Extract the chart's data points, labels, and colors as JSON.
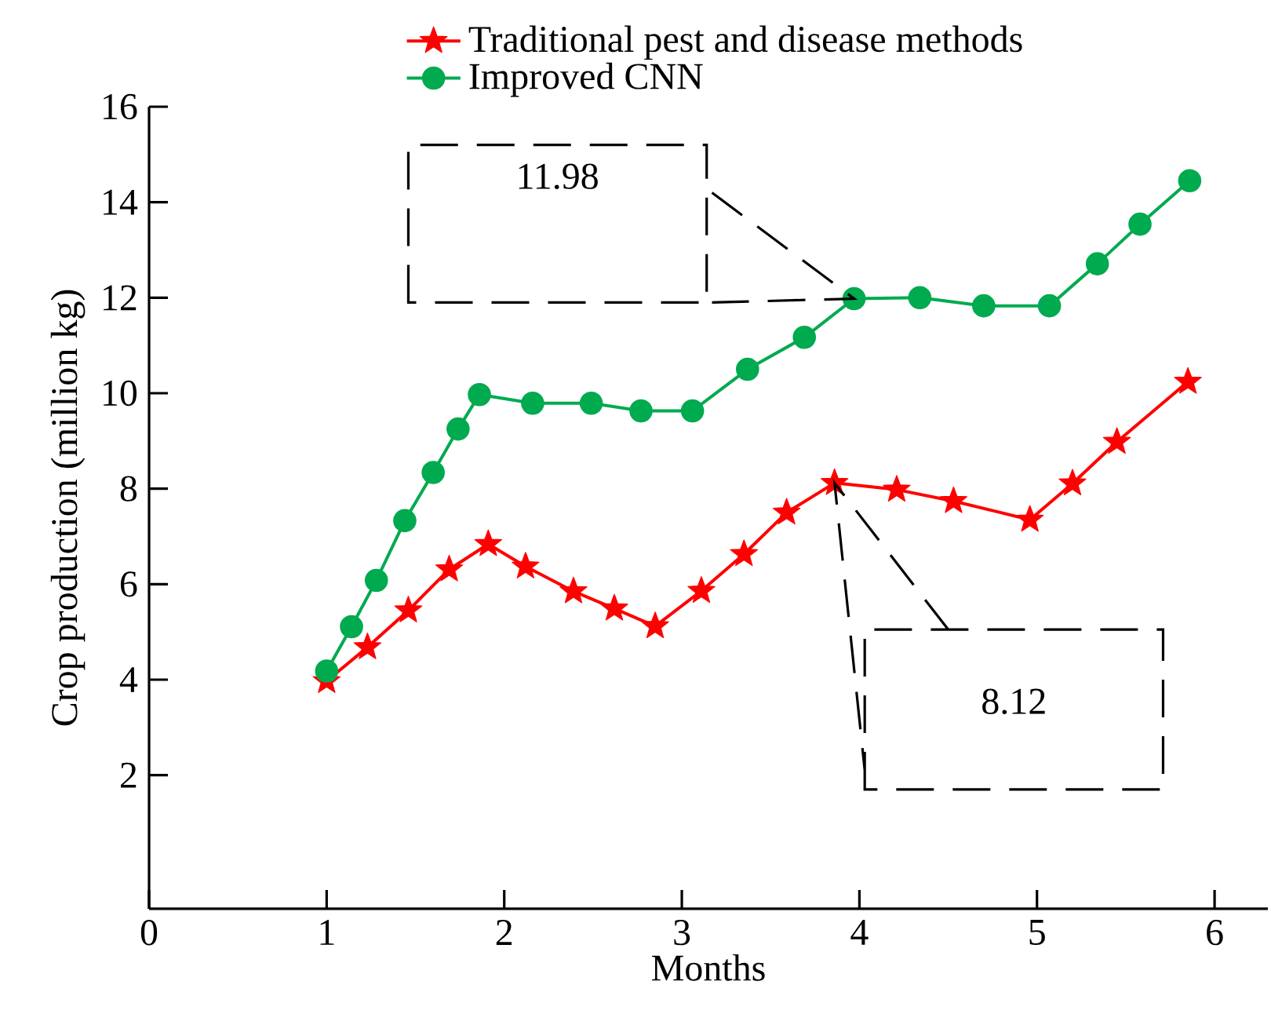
{
  "chart_data": {
    "type": "line",
    "xlabel": "Months",
    "ylabel": "Crop production (million kg)",
    "xlim": [
      0,
      6.3
    ],
    "ylim": [
      -0.8,
      16
    ],
    "xticks": [
      0,
      1,
      2,
      3,
      4,
      5,
      6
    ],
    "yticks": [
      2,
      4,
      6,
      8,
      10,
      12,
      14,
      16
    ],
    "legend": "top",
    "grid": false,
    "line_style": "solid",
    "series": [
      {
        "name": "Traditional pest and disease methods",
        "color": "#ff0000",
        "marker": "star",
        "x": [
          1,
          1.23,
          1.46,
          1.69,
          1.91,
          2.12,
          2.39,
          2.62,
          2.85,
          3.11,
          3.35,
          3.59,
          3.86,
          4.21,
          4.53,
          4.96,
          5.2,
          5.45,
          5.85
        ],
        "values": [
          3.97,
          4.68,
          5.45,
          6.31,
          6.84,
          6.37,
          5.85,
          5.49,
          5.12,
          5.86,
          6.63,
          7.5,
          8.12,
          7.98,
          7.74,
          7.35,
          8.11,
          8.98,
          10.24
        ]
      },
      {
        "name": "Improved CNN",
        "color": "#00aa4f",
        "marker": "circle",
        "x": [
          1,
          1.14,
          1.28,
          1.44,
          1.6,
          1.74,
          1.86,
          2.16,
          2.49,
          2.77,
          3.06,
          3.37,
          3.69,
          3.97,
          4.34,
          4.7,
          5.07,
          5.34,
          5.58,
          5.86
        ],
        "values": [
          4.18,
          5.11,
          6.08,
          7.33,
          8.34,
          9.25,
          9.97,
          9.79,
          9.79,
          9.63,
          9.63,
          10.5,
          11.17,
          11.98,
          12.0,
          11.83,
          11.83,
          12.71,
          13.54,
          14.45
        ]
      }
    ],
    "annotations": [
      "11.98",
      "8.12"
    ]
  }
}
